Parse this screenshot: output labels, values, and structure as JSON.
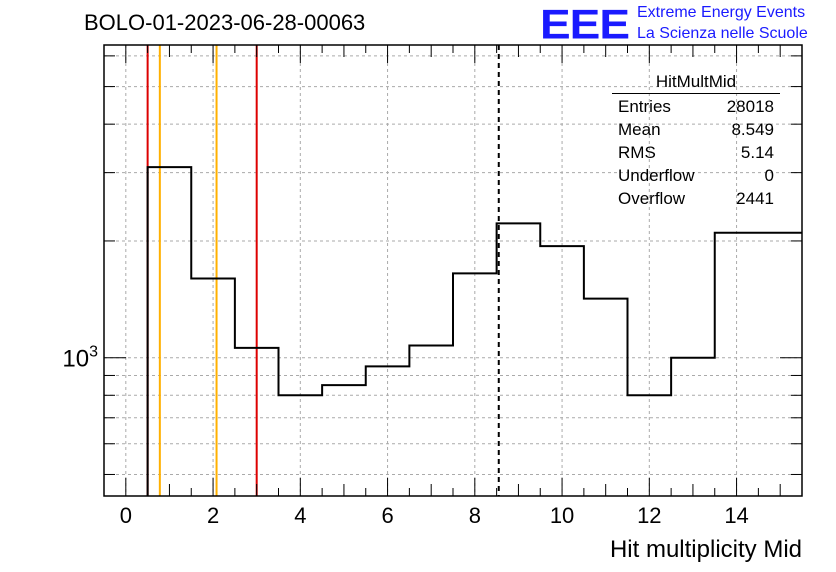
{
  "title": "BOLO-01-2023-06-28-00063",
  "logo": {
    "mark": "EEE",
    "line1": "Extreme Energy Events",
    "line2": "La Scienza nelle Scuole"
  },
  "stats": {
    "name": "HitMultMid",
    "rows": [
      {
        "label": "Entries",
        "value": "28018"
      },
      {
        "label": "Mean",
        "value": "8.549"
      },
      {
        "label": "RMS",
        "value": "5.14"
      },
      {
        "label": "Underflow",
        "value": "0"
      },
      {
        "label": "Overflow",
        "value": "2441"
      }
    ]
  },
  "chart_data": {
    "type": "bar",
    "title": "BOLO-01-2023-06-28-00063",
    "xlabel": "Hit multiplicity Mid",
    "ylabel": "",
    "yscale": "log",
    "xlim": [
      -0.5,
      15.5
    ],
    "ylim": [
      440,
      6400
    ],
    "x_ticks": [
      0,
      2,
      4,
      6,
      8,
      10,
      12,
      14
    ],
    "y_tick_labels": [
      {
        "value": 1000,
        "label": "10^3"
      }
    ],
    "grid": true,
    "bin_edges": [
      0.5,
      1.5,
      2.5,
      3.5,
      4.5,
      5.5,
      6.5,
      7.5,
      8.5,
      9.5,
      10.5,
      11.5,
      12.5,
      13.5,
      15.5
    ],
    "values": [
      3100,
      1600,
      1060,
      800,
      850,
      950,
      1075,
      1650,
      2220,
      1940,
      1420,
      800,
      1000,
      2100
    ],
    "vertical_lines": [
      {
        "x": 0.5,
        "color": "#dd0000",
        "style": "solid"
      },
      {
        "x": 0.78,
        "color": "#ffb000",
        "style": "solid"
      },
      {
        "x": 2.08,
        "color": "#ffb000",
        "style": "solid"
      },
      {
        "x": 3.0,
        "color": "#dd0000",
        "style": "solid"
      },
      {
        "x": 8.549,
        "color": "#000000",
        "style": "dashed"
      }
    ]
  }
}
